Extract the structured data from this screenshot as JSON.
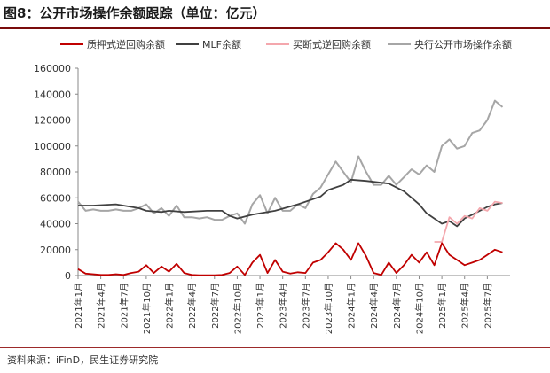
{
  "title": "图8：公开市场操作余额跟踪（单位：亿元）",
  "source": "资料来源：iFinD，民生证券研究院",
  "chart_data": {
    "type": "line",
    "title": "图8：公开市场操作余额跟踪（单位：亿元）",
    "xlabel": "",
    "ylabel": "",
    "ylim": [
      0,
      160000
    ],
    "yticks": [
      0,
      20000,
      40000,
      60000,
      80000,
      100000,
      120000,
      140000,
      160000
    ],
    "xlim": [
      "2021-01",
      "2025-10"
    ],
    "xticks": [
      "2021年1月",
      "2021年4月",
      "2021年7月",
      "2021年10月",
      "2022年1月",
      "2022年4月",
      "2022年7月",
      "2022年10月",
      "2023年1月",
      "2023年4月",
      "2023年7月",
      "2023年10月",
      "2024年1月",
      "2024年4月",
      "2024年7月",
      "2024年10月",
      "2025年1月",
      "2025年4月",
      "2025年7月"
    ],
    "grid": false,
    "legend": "top",
    "series": [
      {
        "name": "质押式逆回购余额",
        "color": "#c00000",
        "x": [
          "2021-01",
          "2021-02",
          "2021-03",
          "2021-04",
          "2021-05",
          "2021-06",
          "2021-07",
          "2021-08",
          "2021-09",
          "2021-10",
          "2021-11",
          "2021-12",
          "2022-01",
          "2022-02",
          "2022-03",
          "2022-04",
          "2022-05",
          "2022-06",
          "2022-07",
          "2022-08",
          "2022-09",
          "2022-10",
          "2022-11",
          "2022-12",
          "2023-01",
          "2023-02",
          "2023-03",
          "2023-04",
          "2023-05",
          "2023-06",
          "2023-07",
          "2023-08",
          "2023-09",
          "2023-10",
          "2023-11",
          "2023-12",
          "2024-01",
          "2024-02",
          "2024-03",
          "2024-04",
          "2024-05",
          "2024-06",
          "2024-07",
          "2024-08",
          "2024-09",
          "2024-10",
          "2024-11",
          "2024-12",
          "2025-01",
          "2025-02",
          "2025-03",
          "2025-04",
          "2025-05",
          "2025-06",
          "2025-07",
          "2025-08",
          "2025-09"
        ],
        "values": [
          5000,
          1500,
          1000,
          500,
          500,
          1000,
          500,
          2000,
          3000,
          8000,
          2000,
          7000,
          3000,
          9000,
          2000,
          500,
          300,
          200,
          300,
          500,
          2000,
          7000,
          500,
          10000,
          16000,
          2000,
          12000,
          3000,
          1500,
          2500,
          2000,
          10000,
          12000,
          18000,
          25000,
          20000,
          12000,
          25000,
          15000,
          2000,
          500,
          10000,
          2000,
          8000,
          16000,
          10000,
          18000,
          8000,
          25000,
          16000,
          12000,
          8000,
          10000,
          12000,
          16000,
          20000,
          18000
        ]
      },
      {
        "name": "MLF余额",
        "color": "#404040",
        "x": [
          "2021-01",
          "2021-03",
          "2021-06",
          "2021-09",
          "2021-10",
          "2021-12",
          "2022-01",
          "2022-03",
          "2022-06",
          "2022-08",
          "2022-09",
          "2022-10",
          "2022-12",
          "2023-01",
          "2023-03",
          "2023-06",
          "2023-09",
          "2023-10",
          "2023-12",
          "2024-01",
          "2024-03",
          "2024-06",
          "2024-08",
          "2024-10",
          "2024-11",
          "2024-12",
          "2025-01",
          "2025-02",
          "2025-03",
          "2025-04",
          "2025-05",
          "2025-06",
          "2025-07",
          "2025-08",
          "2025-09"
        ],
        "values": [
          54000,
          54000,
          55000,
          52000,
          50000,
          49000,
          50000,
          49000,
          50000,
          50000,
          46000,
          44000,
          47000,
          48000,
          50000,
          55000,
          61000,
          66000,
          70000,
          74000,
          73000,
          71000,
          65000,
          55000,
          48000,
          44000,
          40000,
          42000,
          38000,
          44000,
          47000,
          50000,
          53000,
          55000,
          56000
        ]
      },
      {
        "name": "买断式逆回购余额",
        "color": "#f4a7ad",
        "x": [
          "2024-12",
          "2025-01",
          "2025-02",
          "2025-03",
          "2025-04",
          "2025-05",
          "2025-06",
          "2025-07",
          "2025-08",
          "2025-09"
        ],
        "values": [
          26000,
          26000,
          45000,
          40000,
          46000,
          44000,
          52000,
          50000,
          57000,
          56000
        ]
      },
      {
        "name": "央行公开市场操作余额",
        "color": "#a6a6a6",
        "x": [
          "2021-01",
          "2021-02",
          "2021-03",
          "2021-04",
          "2021-05",
          "2021-06",
          "2021-07",
          "2021-08",
          "2021-09",
          "2021-10",
          "2021-11",
          "2021-12",
          "2022-01",
          "2022-02",
          "2022-03",
          "2022-04",
          "2022-05",
          "2022-06",
          "2022-07",
          "2022-08",
          "2022-09",
          "2022-10",
          "2022-11",
          "2022-12",
          "2023-01",
          "2023-02",
          "2023-03",
          "2023-04",
          "2023-05",
          "2023-06",
          "2023-07",
          "2023-08",
          "2023-09",
          "2023-10",
          "2023-11",
          "2023-12",
          "2024-01",
          "2024-02",
          "2024-03",
          "2024-04",
          "2024-05",
          "2024-06",
          "2024-07",
          "2024-08",
          "2024-09",
          "2024-10",
          "2024-11",
          "2024-12",
          "2025-01",
          "2025-02",
          "2025-03",
          "2025-04",
          "2025-05",
          "2025-06",
          "2025-07",
          "2025-08",
          "2025-09"
        ],
        "values": [
          57000,
          50000,
          51000,
          50000,
          50000,
          51000,
          50000,
          50000,
          52000,
          55000,
          48000,
          52000,
          46000,
          54000,
          45000,
          45000,
          44000,
          45000,
          43000,
          43000,
          46000,
          48000,
          40000,
          55000,
          62000,
          48000,
          60000,
          50000,
          50000,
          55000,
          52000,
          63000,
          68000,
          78000,
          88000,
          80000,
          72000,
          92000,
          80000,
          70000,
          70000,
          77000,
          70000,
          76000,
          82000,
          78000,
          85000,
          80000,
          100000,
          105000,
          98000,
          100000,
          110000,
          112000,
          120000,
          135000,
          130000
        ]
      }
    ]
  }
}
